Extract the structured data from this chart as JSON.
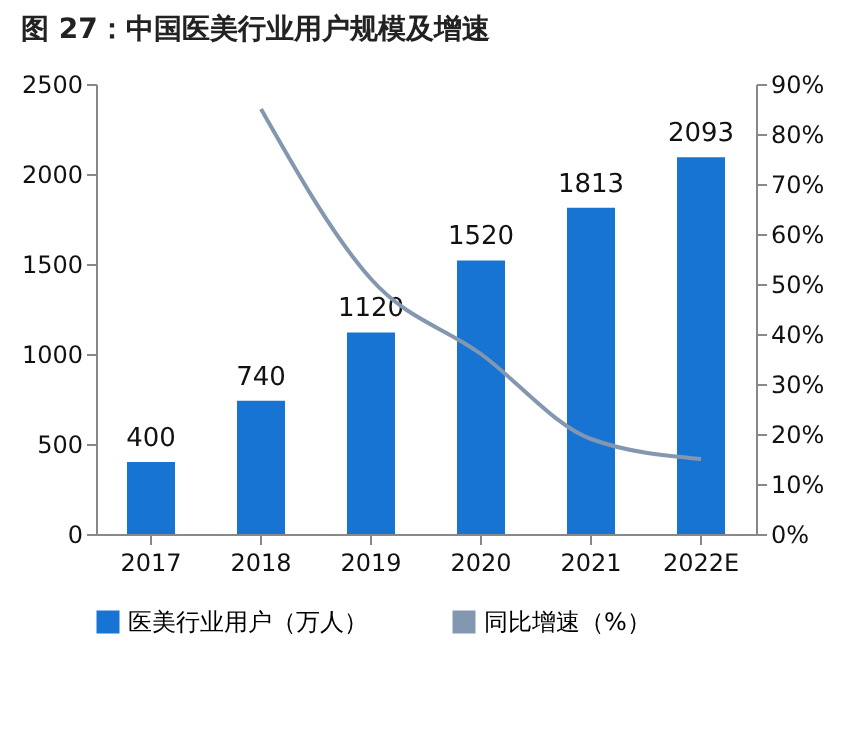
{
  "chart_data": {
    "type": "bar",
    "title": "图 27：中国医美行业用户规模及增速",
    "categories": [
      "2017",
      "2018",
      "2019",
      "2020",
      "2021",
      "2022E"
    ],
    "series": [
      {
        "name": "医美行业用户（万人）",
        "color": "#1874d2",
        "values": [
          400,
          740,
          1120,
          1520,
          1813,
          2093
        ],
        "value_labels": [
          "400",
          "740",
          "1120",
          "1520",
          "1813",
          "2093"
        ]
      },
      {
        "name": "同比增速（%）",
        "type": "line",
        "axis": "y2",
        "color": "#8497b0",
        "values": [
          null,
          85,
          51,
          36,
          19,
          15
        ]
      }
    ],
    "ylim": [
      0,
      2500
    ],
    "yticks": [
      0,
      500,
      1000,
      1500,
      2000,
      2500
    ],
    "y2lim": [
      0,
      90
    ],
    "y2ticks": [
      {
        "value": 0,
        "label": "0%"
      },
      {
        "value": 10,
        "label": "10%"
      },
      {
        "value": 20,
        "label": "20%"
      },
      {
        "value": 30,
        "label": "30%"
      },
      {
        "value": 40,
        "label": "40%"
      },
      {
        "value": 50,
        "label": "50%"
      },
      {
        "value": 60,
        "label": "60%"
      },
      {
        "value": 70,
        "label": "70%"
      },
      {
        "value": 80,
        "label": "80%"
      },
      {
        "value": 90,
        "label": "90%"
      }
    ],
    "grid": false,
    "legend": "bottom"
  }
}
